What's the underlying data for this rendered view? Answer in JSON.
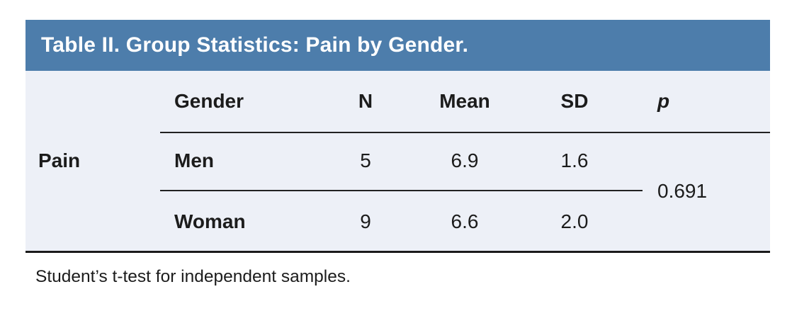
{
  "title": "Table II. Group Statistics: Pain by Gender.",
  "columns": {
    "gender": "Gender",
    "n": "N",
    "mean": "Mean",
    "sd": "SD",
    "p": "p"
  },
  "row_label": "Pain",
  "rows": [
    {
      "gender": "Men",
      "n": "5",
      "mean": "6.9",
      "sd": "1.6"
    },
    {
      "gender": "Woman",
      "n": "9",
      "mean": "6.6",
      "sd": "2.0"
    }
  ],
  "p_value": "0.691",
  "footnote": "Student’s t-test for independent samples.",
  "chart_data": {
    "type": "table",
    "title": "Table II. Group Statistics: Pain by Gender.",
    "columns": [
      "Gender",
      "N",
      "Mean",
      "SD",
      "p"
    ],
    "row_group": "Pain",
    "rows": [
      [
        "Men",
        5,
        6.9,
        1.6,
        0.691
      ],
      [
        "Woman",
        9,
        6.6,
        2.0,
        0.691
      ]
    ],
    "note": "Student’s t-test for independent samples."
  },
  "colors": {
    "header_bg": "#4d7dab",
    "body_bg": "#edf0f7",
    "text": "#1c1c1c",
    "rule": "#222222",
    "rule_strong": "#1b1b1b",
    "title_color": "#ffffff"
  }
}
